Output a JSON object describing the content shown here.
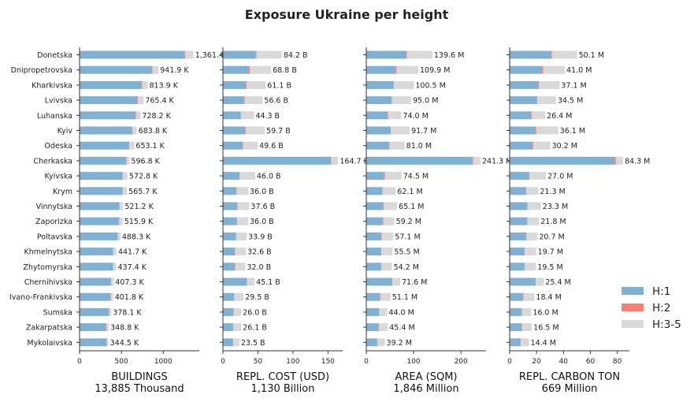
{
  "title": "Exposure Ukraine per height",
  "colors": {
    "h1": "#80b1d3",
    "h2": "#fb8072",
    "h3": "#d9d9d9",
    "axis": "#333333"
  },
  "legend": [
    {
      "label": "H:1",
      "color": "#80b1d3"
    },
    {
      "label": "H:2",
      "color": "#fb8072"
    },
    {
      "label": "H:3-5",
      "color": "#d9d9d9"
    }
  ],
  "chart_data": [
    {
      "type": "bar",
      "orientation": "horizontal",
      "stacked": true,
      "xlabel": "BUILDINGS",
      "xlabel2": "13,885 Thousand",
      "xlim": [
        0,
        1430
      ],
      "xticks": [
        0,
        500,
        1000
      ],
      "categories": [
        "Donetska",
        "Dnipropetrovska",
        "Kharkivska",
        "Lvivska",
        "Luhanska",
        "Kyiv",
        "Odeska",
        "Cherkaska",
        "Kyivska",
        "Krym",
        "Vinnytska",
        "Zaporizka",
        "Poltavska",
        "Khmelnytska",
        "Zhytomyrska",
        "Chernihivska",
        "Ivano-Frankivska",
        "Sumska",
        "Zakarpatska",
        "Mykolaivska"
      ],
      "totals_label": [
        "1,361.4 K",
        "941.9 K",
        "813.9 K",
        "765.4 K",
        "728.2 K",
        "683.8 K",
        "653.1 K",
        "596.8 K",
        "572.8 K",
        "565.7 K",
        "521.2 K",
        "515.9 K",
        "488.3 K",
        "441.7 K",
        "437.4 K",
        "407.3 K",
        "401.8 K",
        "378.1 K",
        "348.8 K",
        "344.5 K"
      ],
      "series": [
        {
          "name": "H:1",
          "values": [
            1255,
            862,
            742,
            690,
            670,
            620,
            590,
            555,
            508,
            512,
            470,
            468,
            452,
            395,
            398,
            375,
            370,
            350,
            315,
            322
          ]
        },
        {
          "name": "H:2",
          "values": [
            8,
            8,
            7,
            7,
            5,
            10,
            5,
            5,
            7,
            4,
            5,
            6,
            6,
            6,
            4,
            4,
            4,
            4,
            5,
            3
          ]
        },
        {
          "name": "H:3-5",
          "values": [
            98.4,
            71.9,
            64.9,
            68.4,
            53.2,
            53.8,
            58.1,
            36.8,
            57.8,
            49.7,
            46.2,
            41.9,
            30.3,
            40.7,
            35.4,
            28.3,
            27.8,
            24.1,
            28.8,
            19.5
          ]
        }
      ]
    },
    {
      "type": "bar",
      "orientation": "horizontal",
      "stacked": true,
      "xlabel": "REPL. COST (USD)",
      "xlabel2": "1,130 Billion",
      "xlim": [
        0,
        171
      ],
      "xticks": [
        0,
        50,
        100,
        150
      ],
      "categories": [
        "Donetska",
        "Dnipropetrovska",
        "Kharkivska",
        "Lvivska",
        "Luhanska",
        "Kyiv",
        "Odeska",
        "Cherkaska",
        "Kyivska",
        "Krym",
        "Vinnytska",
        "Zaporizka",
        "Poltavska",
        "Khmelnytska",
        "Zhytomyrska",
        "Chernihivska",
        "Ivano-Frankivska",
        "Sumska",
        "Zakarpatska",
        "Mykolaivska"
      ],
      "totals_label": [
        "84.2 B",
        "68.8 B",
        "61.1 B",
        "56.6 B",
        "44.3 B",
        "59.7 B",
        "49.6 B",
        "164.7 B",
        "46.0 B",
        "36.0 B",
        "37.6 B",
        "36.0 B",
        "33.9 B",
        "32.6 B",
        "32.0 B",
        "45.1 B",
        "29.5 B",
        "26.0 B",
        "26.1 B",
        "23.5 B"
      ],
      "series": [
        {
          "name": "H:1",
          "values": [
            47,
            37,
            33,
            30,
            25,
            31,
            28,
            153,
            23,
            19,
            20,
            20,
            18,
            17,
            17,
            34,
            16,
            15,
            14,
            14
          ]
        },
        {
          "name": "H:2",
          "values": [
            1,
            1.5,
            1,
            1,
            0.8,
            1.5,
            0.8,
            1.5,
            1,
            0.5,
            0.8,
            0.6,
            0.6,
            0.5,
            0.5,
            0.6,
            0.5,
            0.4,
            0.6,
            0.4
          ]
        },
        {
          "name": "H:3-5",
          "values": [
            36.2,
            30.3,
            27.1,
            25.6,
            18.5,
            27.2,
            20.8,
            10.2,
            22,
            16.5,
            16.8,
            15.4,
            15.3,
            15.1,
            14.5,
            10.5,
            13,
            10.6,
            11.5,
            9.1
          ]
        }
      ]
    },
    {
      "type": "bar",
      "orientation": "horizontal",
      "stacked": true,
      "xlabel": "AREA (SQM)",
      "xlabel2": "1,846 Million",
      "xlim": [
        0,
        253
      ],
      "xticks": [
        0,
        100,
        200
      ],
      "categories": [
        "Donetska",
        "Dnipropetrovska",
        "Kharkivska",
        "Lvivska",
        "Luhanska",
        "Kyiv",
        "Odeska",
        "Cherkaska",
        "Kyivska",
        "Krym",
        "Vinnytska",
        "Zaporizka",
        "Poltavska",
        "Khmelnytska",
        "Zhytomyrska",
        "Chernihivska",
        "Ivano-Frankivska",
        "Sumska",
        "Zakarpatska",
        "Mykolaivska"
      ],
      "totals_label": [
        "139.6 M",
        "109.9 M",
        "100.5 M",
        "95.0 M",
        "74.0 M",
        "91.7 M",
        "81.0 M",
        "241.3 M",
        "74.5 M",
        "62.1 M",
        "65.1 M",
        "59.2 M",
        "57.1 M",
        "55.5 M",
        "54.2 M",
        "71.6 M",
        "51.1 M",
        "44.0 M",
        "45.4 M",
        "39.2 M"
      ],
      "series": [
        {
          "name": "H:1",
          "values": [
            85,
            62,
            57,
            53,
            45,
            50,
            48,
            224,
            38,
            34,
            36,
            35,
            32,
            31,
            31,
            54,
            29,
            27,
            26,
            23
          ]
        },
        {
          "name": "H:2",
          "values": [
            1,
            2,
            1.5,
            1,
            1,
            2,
            1,
            2,
            1.5,
            0.5,
            1,
            1,
            1,
            0.8,
            0.8,
            1,
            0.8,
            0.6,
            0.8,
            0.6
          ]
        },
        {
          "name": "H:3-5",
          "values": [
            53.6,
            45.9,
            42,
            41,
            28,
            39.7,
            32,
            15.3,
            35,
            27.6,
            28.1,
            23.2,
            24.1,
            23.7,
            22.4,
            16.6,
            21.3,
            16.4,
            18.6,
            15.6
          ]
        }
      ]
    },
    {
      "type": "bar",
      "orientation": "horizontal",
      "stacked": true,
      "xlabel": "REPL. CARBON TON",
      "xlabel2": "669 Million",
      "xlim": [
        0,
        89
      ],
      "xticks": [
        0,
        20,
        40,
        60,
        80
      ],
      "categories": [
        "Donetska",
        "Dnipropetrovska",
        "Kharkivska",
        "Lvivska",
        "Luhanska",
        "Kyiv",
        "Odeska",
        "Cherkaska",
        "Kyivska",
        "Krym",
        "Vinnytska",
        "Zaporizka",
        "Poltavska",
        "Khmelnytska",
        "Zhytomyrska",
        "Chernihivska",
        "Ivano-Frankivska",
        "Sumska",
        "Zakarpatska",
        "Mykolaivska"
      ],
      "totals_label": [
        "50.1 M",
        "41.0 M",
        "37.1 M",
        "34.5 M",
        "26.4 M",
        "36.1 M",
        "30.2 M",
        "84.3 M",
        "27.0 M",
        "21.3 M",
        "23.3 M",
        "21.8 M",
        "20.7 M",
        "19.7 M",
        "19.5 M",
        "25.4 M",
        "18.4 M",
        "16.0 M",
        "16.5 M",
        "14.4 M"
      ],
      "series": [
        {
          "name": "H:1",
          "values": [
            31,
            24,
            21,
            20,
            16,
            19,
            17,
            78,
            14,
            12,
            13,
            13,
            12,
            11,
            11,
            19,
            10,
            9,
            9,
            8
          ]
        },
        {
          "name": "H:2",
          "values": [
            0.5,
            0.8,
            0.8,
            0.5,
            0.4,
            0.8,
            0.5,
            1,
            0.6,
            0.3,
            0.4,
            0.3,
            0.3,
            0.3,
            0.3,
            0.4,
            0.3,
            0.2,
            0.3,
            0.2
          ]
        },
        {
          "name": "H:3-5",
          "values": [
            18.6,
            16.2,
            15.3,
            14,
            10,
            16.3,
            12.7,
            5.3,
            12.4,
            9,
            9.9,
            8.5,
            8.4,
            8.4,
            8.2,
            6,
            8.1,
            6.8,
            7.2,
            6.2
          ]
        }
      ]
    }
  ]
}
